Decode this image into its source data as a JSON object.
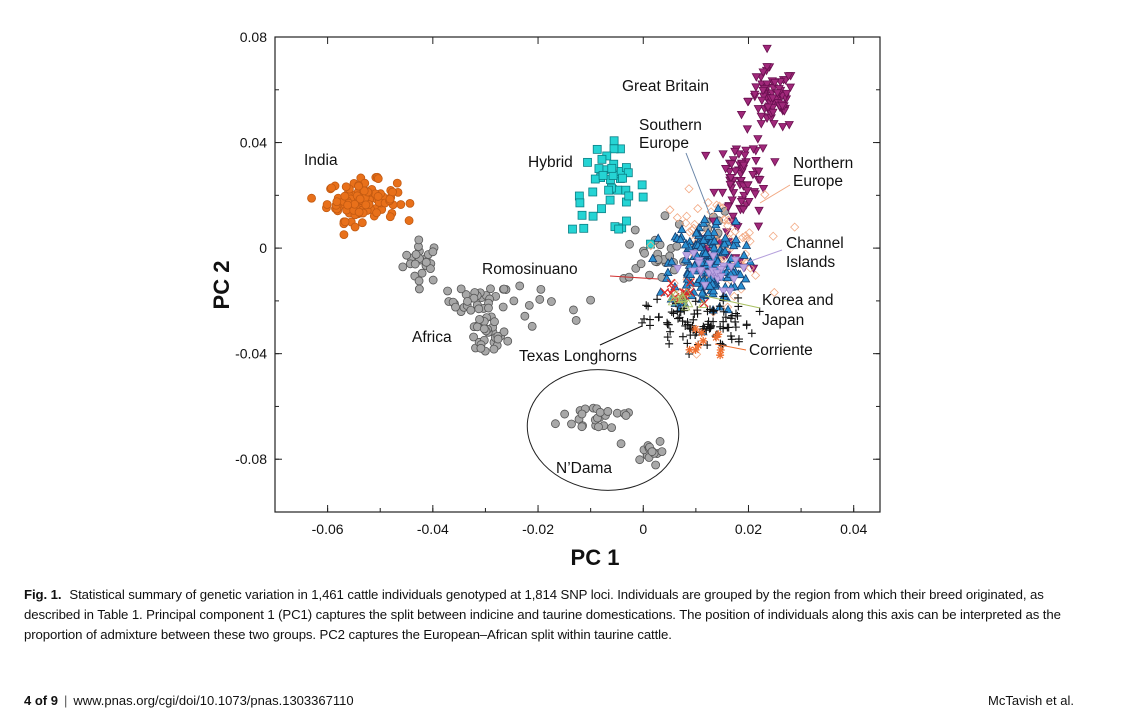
{
  "chart_data": {
    "type": "scatter",
    "xlabel": "PC 1",
    "ylabel": "PC 2",
    "xlim": [
      -0.07,
      0.045
    ],
    "ylim": [
      -0.1,
      0.08
    ],
    "xticks": [
      "-0.06",
      "-0.04",
      "-0.02",
      "0",
      "0.02",
      "0.04"
    ],
    "xtick_values": [
      -0.06,
      -0.04,
      -0.02,
      0,
      0.02,
      0.04
    ],
    "yticks": [
      "0.08",
      "0.04",
      "0",
      "-0.04",
      "-0.08"
    ],
    "ytick_values": [
      0.08,
      0.04,
      0,
      -0.04,
      -0.08
    ],
    "grid": false,
    "labels": {
      "india": "India",
      "hybrid": "Hybrid",
      "great_britain": "Great Britain",
      "southern_europe": [
        "Southern",
        "Europe"
      ],
      "northern_europe": [
        "Northern",
        "Europe"
      ],
      "channel_islands": [
        "Channel",
        "Islands"
      ],
      "romosinuano": "Romosinuano",
      "korea_japan": [
        "Korea and",
        "Japan"
      ],
      "africa": "Africa",
      "texas_longhorns": "Texas Longhorns",
      "corriente": "Corriente",
      "ndama": "N’Dama"
    },
    "series_note": "point clouds approximated as clusters: center [PC1, PC2], spread [sd PC1, sd PC2], count",
    "series": [
      {
        "name": "Africa",
        "marker": "circle",
        "fill": "#a8a8a8",
        "stroke": "#555555",
        "clusters": [
          {
            "center": [
              -0.042,
              -0.005
            ],
            "spread": [
              0.0018,
              0.004
            ],
            "n": 26
          },
          {
            "center": [
              -0.031,
              -0.02
            ],
            "spread": [
              0.003,
              0.003
            ],
            "n": 30
          },
          {
            "center": [
              -0.03,
              -0.033
            ],
            "spread": [
              0.002,
              0.004
            ],
            "n": 30
          },
          {
            "center": [
              -0.019,
              -0.024
            ],
            "spread": [
              0.006,
              0.005
            ],
            "n": 12
          },
          {
            "center": [
              0.002,
              -0.004
            ],
            "spread": [
              0.003,
              0.005
            ],
            "n": 24
          },
          {
            "center": [
              0.011,
              0.008
            ],
            "spread": [
              0.003,
              0.004
            ],
            "n": 14
          }
        ]
      },
      {
        "name": "N'Dama",
        "marker": "circle",
        "fill": "#a8a8a8",
        "stroke": "#555555",
        "clusters": [
          {
            "center": [
              -0.008,
              -0.064
            ],
            "spread": [
              0.004,
              0.003
            ],
            "n": 26
          },
          {
            "center": [
              0.001,
              -0.077
            ],
            "spread": [
              0.0015,
              0.0025
            ],
            "n": 18
          }
        ]
      },
      {
        "name": "India",
        "marker": "circle",
        "fill": "#e8701a",
        "stroke": "#c25a12",
        "clusters": [
          {
            "center": [
              -0.0535,
              0.018
            ],
            "spread": [
              0.0033,
              0.0038
            ],
            "n": 115
          }
        ]
      },
      {
        "name": "Hybrid",
        "marker": "square",
        "fill": "#25d4d4",
        "stroke": "#0b7f85",
        "clusters": [
          {
            "center": [
              -0.0065,
              0.022
            ],
            "spread": [
              0.0035,
              0.008
            ],
            "n": 45
          }
        ]
      },
      {
        "name": "Great Britain",
        "marker": "tri-down",
        "fill": "#a0287a",
        "stroke": "#6a1050",
        "clusters": [
          {
            "center": [
              0.0245,
              0.056
            ],
            "spread": [
              0.0022,
              0.006
            ],
            "n": 80
          },
          {
            "center": [
              0.019,
              0.028
            ],
            "spread": [
              0.0025,
              0.007
            ],
            "n": 60
          },
          {
            "center": [
              0.018,
              0.005
            ],
            "spread": [
              0.003,
              0.007
            ],
            "n": 25
          }
        ]
      },
      {
        "name": "Northern Europe",
        "marker": "diamond-open",
        "fill": "none",
        "stroke": "#f2a882",
        "clusters": [
          {
            "center": [
              0.013,
              0.0
            ],
            "spread": [
              0.005,
              0.01
            ],
            "n": 80
          }
        ]
      },
      {
        "name": "Southern Europe",
        "marker": "triangle",
        "fill": "#2a90d2",
        "stroke": "#163e6e",
        "clusters": [
          {
            "center": [
              0.012,
              -0.006
            ],
            "spread": [
              0.0035,
              0.009
            ],
            "n": 180
          }
        ]
      },
      {
        "name": "Channel Islands",
        "marker": "tri-down",
        "fill": "#bca6e4",
        "stroke": "#9680c8",
        "clusters": [
          {
            "center": [
              0.012,
              -0.009
            ],
            "spread": [
              0.003,
              0.004
            ],
            "n": 25
          }
        ]
      },
      {
        "name": "Texas Longhorns",
        "marker": "plus",
        "fill": "none",
        "stroke": "#111111",
        "clusters": [
          {
            "center": [
              0.011,
              -0.029
            ],
            "spread": [
              0.005,
              0.005
            ],
            "n": 95
          }
        ]
      },
      {
        "name": "Romosinuano",
        "marker": "x",
        "fill": "none",
        "stroke": "#e02a2a",
        "clusters": [
          {
            "center": [
              0.007,
              -0.018
            ],
            "spread": [
              0.002,
              0.003
            ],
            "n": 12
          }
        ]
      },
      {
        "name": "Korea and Japan",
        "marker": "triangle-open",
        "fill": "none",
        "stroke": "#a8c060",
        "clusters": [
          {
            "center": [
              0.008,
              -0.019
            ],
            "spread": [
              0.003,
              0.002
            ],
            "n": 12
          }
        ]
      },
      {
        "name": "Corriente",
        "marker": "asterisk",
        "fill": "none",
        "stroke": "#f07030",
        "clusters": [
          {
            "center": [
              0.012,
              -0.035
            ],
            "spread": [
              0.002,
              0.004
            ],
            "n": 10
          }
        ]
      }
    ]
  },
  "caption": {
    "label": "Fig. 1.",
    "text": "Statistical summary of genetic variation in 1,461 cattle individuals genotyped at 1,814 SNP loci. Individuals are grouped by the region from which their breed originated, as described in Table 1. Principal component 1 (PC1) captures the split between indicine and taurine domestications. The position of individuals along this axis can be interpreted as the proportion of admixture between these two groups. PC2 captures the European–African split within taurine cattle."
  },
  "footer": {
    "page": "4 of 9",
    "separator": "|",
    "doi": "www.pnas.org/cgi/doi/10.1073/pnas.1303367110",
    "authors": "McTavish et al."
  }
}
